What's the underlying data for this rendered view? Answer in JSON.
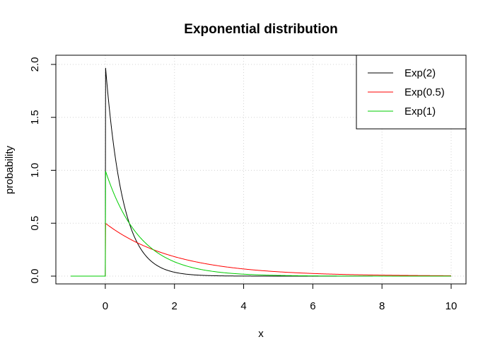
{
  "chart_data": {
    "type": "line",
    "title": "Exponential distribution",
    "xlabel": "x",
    "ylabel": "probability",
    "xlim": [
      -1,
      10
    ],
    "ylim": [
      0,
      2
    ],
    "x_ticks": [
      "0",
      "2",
      "4",
      "6",
      "8",
      "10"
    ],
    "y_ticks": [
      "0.0",
      "0.5",
      "1.0",
      "1.5",
      "2.0"
    ],
    "grid": true,
    "legend_position": "top-right",
    "series": [
      {
        "name": "Exp(2)",
        "rate": 2,
        "color": "#000000"
      },
      {
        "name": "Exp(0.5)",
        "rate": 0.5,
        "color": "#ff0000"
      },
      {
        "name": "Exp(1)",
        "rate": 1,
        "color": "#00cd00"
      }
    ]
  }
}
